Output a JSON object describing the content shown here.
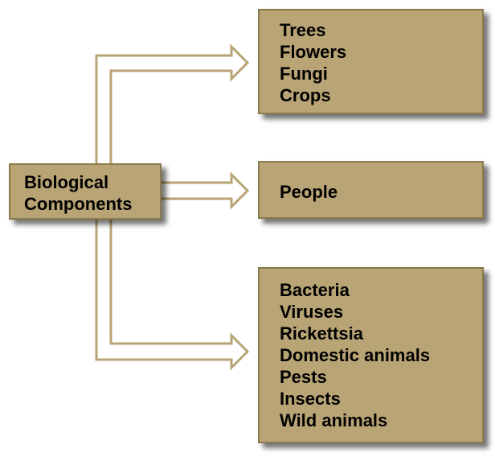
{
  "source": {
    "lines": [
      "Biological",
      "Components"
    ]
  },
  "targets": [
    {
      "items": [
        "Trees",
        "Flowers",
        "Fungi",
        "Crops"
      ]
    },
    {
      "items": [
        "People"
      ]
    },
    {
      "items": [
        "Bacteria",
        "Viruses",
        "Rickettsia",
        "Domestic animals",
        "Pests",
        "Insects",
        "Wild animals"
      ]
    }
  ],
  "colors": {
    "box_fill": "#b8a474",
    "box_border": "#8a7a4c",
    "connector": "#b8a474",
    "text": "#000000"
  }
}
